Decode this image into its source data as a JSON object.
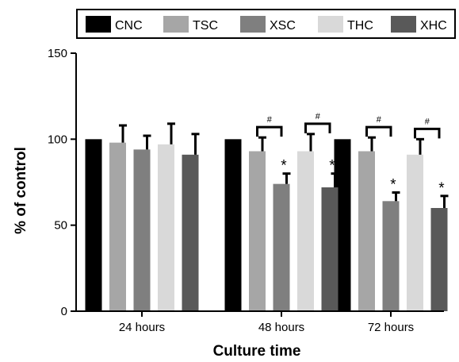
{
  "chart_data": {
    "type": "bar",
    "categories": [
      "24 hours",
      "48 hours",
      "72 hours"
    ],
    "series": [
      {
        "name": "CNC",
        "color": "#000000",
        "values": [
          100,
          100,
          100
        ],
        "errors": [
          0,
          0,
          0
        ]
      },
      {
        "name": "TSC",
        "color": "#a6a6a6",
        "values": [
          98,
          93,
          93
        ],
        "errors": [
          10,
          8,
          8
        ]
      },
      {
        "name": "XSC",
        "color": "#7f7f7f",
        "values": [
          94,
          74,
          64
        ],
        "errors": [
          8,
          6,
          5
        ]
      },
      {
        "name": "THC",
        "color": "#d9d9d9",
        "values": [
          97,
          93,
          91
        ],
        "errors": [
          12,
          10,
          9
        ]
      },
      {
        "name": "XHC",
        "color": "#595959",
        "values": [
          91,
          72,
          60
        ],
        "errors": [
          12,
          8,
          7
        ]
      }
    ],
    "xlabel": "Culture time",
    "ylabel": "% of control",
    "ylim": [
      0,
      150
    ],
    "yticks": [
      0,
      50,
      100,
      150
    ],
    "legend_position": "top",
    "grid": false,
    "annotations": {
      "asterisk": "*",
      "hash": "#",
      "asterisk_marks": [
        {
          "category": 1,
          "series": 2
        },
        {
          "category": 1,
          "series": 4
        },
        {
          "category": 2,
          "series": 2
        },
        {
          "category": 2,
          "series": 4
        }
      ],
      "hash_brackets": [
        {
          "category": 1,
          "from": 1,
          "to": 2
        },
        {
          "category": 1,
          "from": 3,
          "to": 4
        },
        {
          "category": 2,
          "from": 1,
          "to": 2
        },
        {
          "category": 2,
          "from": 3,
          "to": 4
        }
      ]
    }
  }
}
